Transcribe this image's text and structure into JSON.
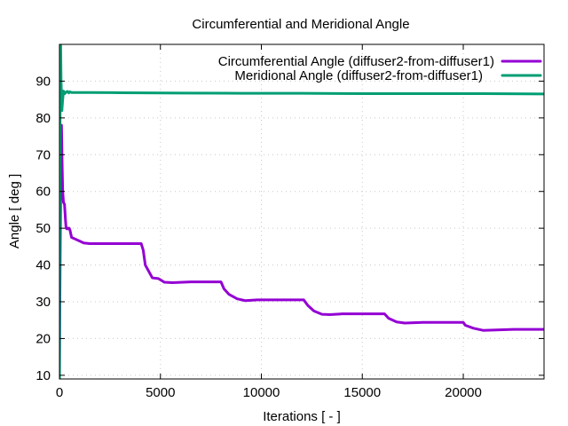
{
  "chart_data": {
    "type": "line",
    "title": "Circumferential and Meridional Angle",
    "xlabel": "Iterations [ - ]",
    "ylabel": "Angle [ deg ]",
    "xlim": [
      0,
      24000
    ],
    "ylim": [
      9,
      100
    ],
    "xticks": [
      0,
      5000,
      10000,
      15000,
      20000
    ],
    "xtick_labels": [
      "0",
      "5000",
      "10000",
      "15000",
      "20000"
    ],
    "yticks": [
      10,
      20,
      30,
      40,
      50,
      60,
      70,
      80,
      90
    ],
    "ytick_labels": [
      "10",
      "20",
      "30",
      "40",
      "50",
      "60",
      "70",
      "80",
      "90"
    ],
    "grid": true,
    "legend_position": "top-right",
    "series": [
      {
        "name": "Circumferential Angle (diffuser2-from-diffuser1)",
        "color": "#9400d3",
        "points": [
          [
            0,
            9.5
          ],
          [
            20,
            30
          ],
          [
            40,
            45
          ],
          [
            60,
            60
          ],
          [
            80,
            70
          ],
          [
            100,
            78
          ],
          [
            130,
            68
          ],
          [
            160,
            60
          ],
          [
            200,
            57
          ],
          [
            250,
            56.5
          ],
          [
            300,
            52
          ],
          [
            330,
            50
          ],
          [
            380,
            49.8
          ],
          [
            420,
            50
          ],
          [
            480,
            50
          ],
          [
            520,
            49.5
          ],
          [
            600,
            47.5
          ],
          [
            800,
            47
          ],
          [
            1000,
            46.5
          ],
          [
            1200,
            46
          ],
          [
            1500,
            45.8
          ],
          [
            2000,
            45.8
          ],
          [
            3000,
            45.8
          ],
          [
            4050,
            45.8
          ],
          [
            4150,
            44
          ],
          [
            4250,
            40
          ],
          [
            4450,
            38
          ],
          [
            4600,
            36.5
          ],
          [
            4900,
            36.3
          ],
          [
            5200,
            35.3
          ],
          [
            5600,
            35.2
          ],
          [
            6500,
            35.4
          ],
          [
            8000,
            35.4
          ],
          [
            8150,
            33.5
          ],
          [
            8400,
            32
          ],
          [
            8800,
            30.8
          ],
          [
            9200,
            30.3
          ],
          [
            9800,
            30.5
          ],
          [
            10500,
            30.5
          ],
          [
            12100,
            30.5
          ],
          [
            12300,
            29
          ],
          [
            12600,
            27.5
          ],
          [
            13000,
            26.6
          ],
          [
            13400,
            26.5
          ],
          [
            14000,
            26.7
          ],
          [
            16100,
            26.7
          ],
          [
            16300,
            25.5
          ],
          [
            16700,
            24.5
          ],
          [
            17100,
            24.2
          ],
          [
            18000,
            24.4
          ],
          [
            20000,
            24.4
          ],
          [
            20100,
            23.6
          ],
          [
            20500,
            22.8
          ],
          [
            21000,
            22.2
          ],
          [
            21500,
            22.3
          ],
          [
            22500,
            22.5
          ],
          [
            24000,
            22.5
          ]
        ]
      },
      {
        "name": "Meridional Angle (diffuser2-from-diffuser1)",
        "color": "#009e73",
        "points": [
          [
            0,
            9
          ],
          [
            20,
            60
          ],
          [
            40,
            100
          ],
          [
            60,
            100
          ],
          [
            80,
            90
          ],
          [
            120,
            82
          ],
          [
            160,
            85
          ],
          [
            200,
            87.3
          ],
          [
            260,
            86.6
          ],
          [
            320,
            87
          ],
          [
            400,
            87.2
          ],
          [
            460,
            86.8
          ],
          [
            520,
            87.1
          ],
          [
            600,
            86.9
          ],
          [
            800,
            86.9
          ],
          [
            1500,
            86.9
          ],
          [
            3000,
            86.85
          ],
          [
            6000,
            86.75
          ],
          [
            9000,
            86.7
          ],
          [
            12000,
            86.7
          ],
          [
            15000,
            86.6
          ],
          [
            18000,
            86.6
          ],
          [
            21000,
            86.6
          ],
          [
            24000,
            86.5
          ]
        ]
      }
    ]
  }
}
